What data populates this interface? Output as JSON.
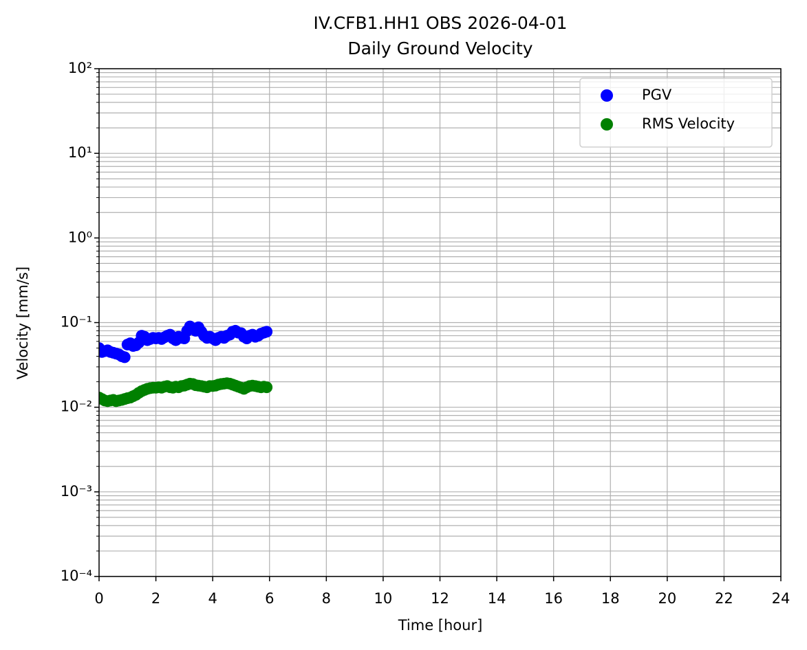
{
  "chart_data": {
    "type": "scatter",
    "title": "IV.CFB1.HH1 OBS 2026-04-01",
    "subtitle": "Daily Ground Velocity",
    "x_label": "Time [hour]",
    "y_label": "Velocity [mm/s]",
    "x": [
      0,
      0.1,
      0.2,
      0.3,
      0.4,
      0.5,
      0.6,
      0.7,
      0.8,
      0.9,
      1.0,
      1.1,
      1.2,
      1.3,
      1.4,
      1.5,
      1.6,
      1.7,
      1.8,
      1.9,
      2.0,
      2.1,
      2.2,
      2.3,
      2.4,
      2.5,
      2.6,
      2.7,
      2.8,
      2.9,
      3.0,
      3.1,
      3.2,
      3.3,
      3.4,
      3.5,
      3.6,
      3.7,
      3.8,
      3.9,
      4.0,
      4.1,
      4.2,
      4.3,
      4.4,
      4.5,
      4.6,
      4.7,
      4.8,
      4.9,
      5.0,
      5.1,
      5.2,
      5.3,
      5.4,
      5.5,
      5.6,
      5.7,
      5.8,
      5.9
    ],
    "series": [
      {
        "name": "PGV",
        "color": "#0000ff",
        "values": [
          0.05,
          0.045,
          0.046,
          0.047,
          0.045,
          0.044,
          0.043,
          0.042,
          0.04,
          0.039,
          0.055,
          0.057,
          0.053,
          0.054,
          0.058,
          0.07,
          0.068,
          0.062,
          0.064,
          0.066,
          0.065,
          0.066,
          0.064,
          0.067,
          0.07,
          0.072,
          0.065,
          0.062,
          0.068,
          0.066,
          0.065,
          0.08,
          0.09,
          0.085,
          0.08,
          0.088,
          0.078,
          0.07,
          0.066,
          0.068,
          0.065,
          0.062,
          0.066,
          0.068,
          0.066,
          0.07,
          0.072,
          0.078,
          0.08,
          0.076,
          0.075,
          0.068,
          0.065,
          0.07,
          0.072,
          0.068,
          0.07,
          0.074,
          0.076,
          0.078
        ]
      },
      {
        "name": "RMS Velocity",
        "color": "#008000",
        "values": [
          0.013,
          0.0125,
          0.012,
          0.0118,
          0.012,
          0.0122,
          0.0118,
          0.012,
          0.0122,
          0.0125,
          0.0128,
          0.013,
          0.0135,
          0.014,
          0.0148,
          0.0155,
          0.016,
          0.0165,
          0.0168,
          0.017,
          0.017,
          0.0172,
          0.017,
          0.0175,
          0.0178,
          0.0172,
          0.017,
          0.0175,
          0.0172,
          0.0178,
          0.018,
          0.0185,
          0.019,
          0.0188,
          0.0182,
          0.018,
          0.0178,
          0.0175,
          0.0172,
          0.0178,
          0.0178,
          0.018,
          0.0185,
          0.0188,
          0.019,
          0.0192,
          0.019,
          0.0185,
          0.018,
          0.0175,
          0.017,
          0.0165,
          0.0172,
          0.0178,
          0.018,
          0.0178,
          0.0175,
          0.0172,
          0.0175,
          0.0172
        ]
      }
    ],
    "xlim": [
      0,
      24
    ],
    "xticks": [
      0,
      2,
      4,
      6,
      8,
      10,
      12,
      14,
      16,
      18,
      20,
      22,
      24
    ],
    "ylim": [
      0.0001,
      100
    ],
    "yticks": [
      {
        "value": 0.0001,
        "label": "10⁻⁴"
      },
      {
        "value": 0.001,
        "label": "10⁻³"
      },
      {
        "value": 0.01,
        "label": "10⁻²"
      },
      {
        "value": 0.1,
        "label": "10⁻¹"
      },
      {
        "value": 1,
        "label": "10⁰"
      },
      {
        "value": 10,
        "label": "10¹"
      },
      {
        "value": 100,
        "label": "10²"
      }
    ],
    "y_log": true,
    "grid": true,
    "minor_grid": true,
    "legend": "upper right"
  }
}
